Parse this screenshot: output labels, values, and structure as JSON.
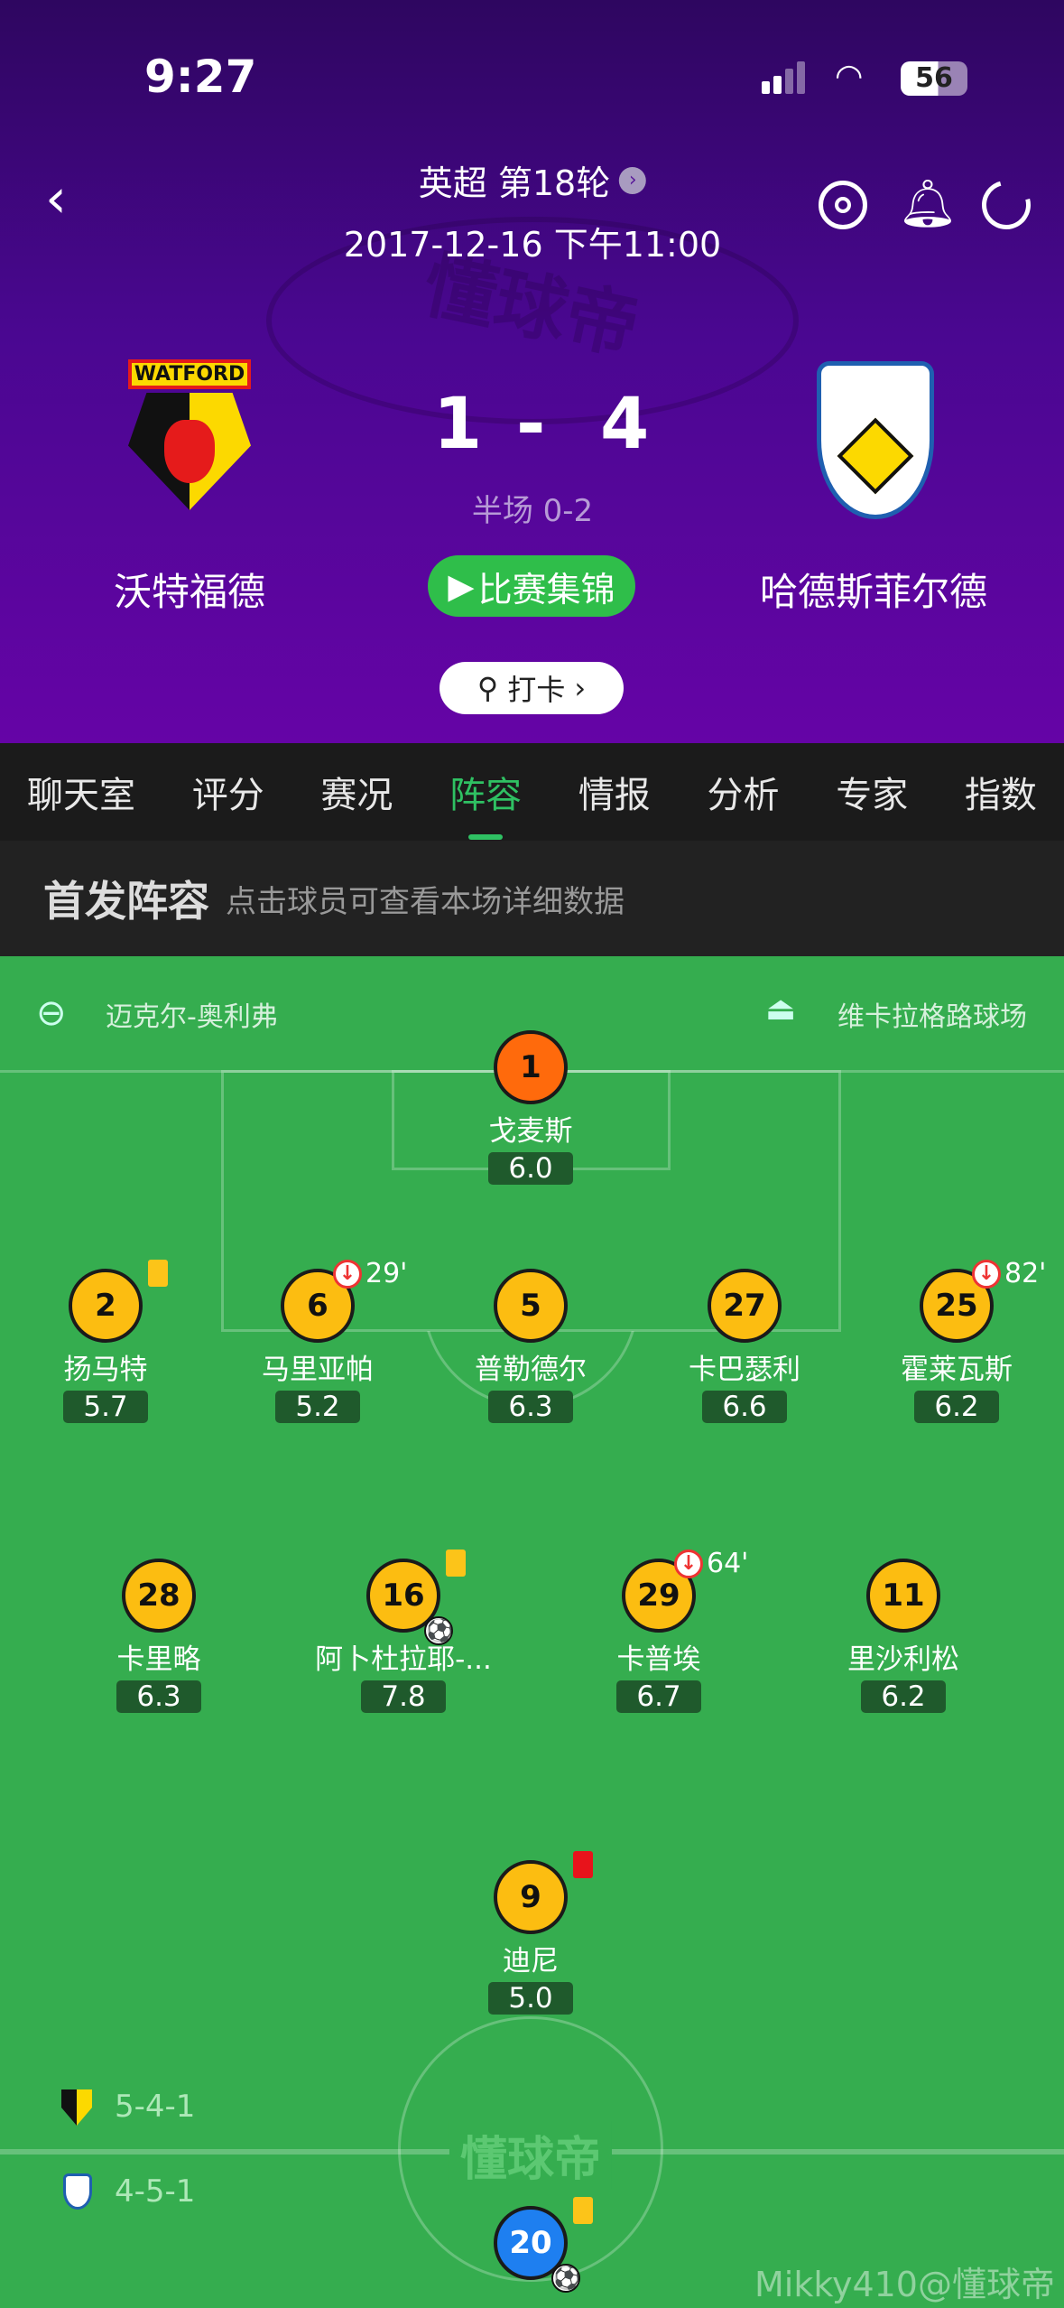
{
  "status": {
    "time": "9:27",
    "battery": "56"
  },
  "header": {
    "league": "英超 第18轮",
    "datetime": "2017-12-16 下午11:00"
  },
  "match": {
    "home": {
      "name": "沃特福德",
      "badge": "WATFORD",
      "score": "1"
    },
    "away": {
      "name": "哈德斯菲尔德",
      "score": "4"
    },
    "separator": "-",
    "halftime": "半场 0-2",
    "highlights_label": "比赛集锦",
    "checkin_label": "打卡"
  },
  "watermark": "懂球帝",
  "tabs": [
    {
      "label": "聊天室"
    },
    {
      "label": "评分"
    },
    {
      "label": "赛况"
    },
    {
      "label": "阵容",
      "active": true
    },
    {
      "label": "情报"
    },
    {
      "label": "分析"
    },
    {
      "label": "专家"
    },
    {
      "label": "指数"
    }
  ],
  "lineup": {
    "title": "首发阵容",
    "hint": "点击球员可查看本场详细数据",
    "referee": "迈克尔-奥利弗",
    "stadium": "维卡拉格路球场",
    "home_formation": "5-4-1",
    "away_formation": "4-5-1"
  },
  "players": [
    {
      "number": "1",
      "name": "戈麦斯",
      "rating": "6.0",
      "color": "#ff6a0c"
    },
    {
      "number": "2",
      "name": "扬马特",
      "rating": "5.7",
      "card": "yellow"
    },
    {
      "number": "6",
      "name": "马里亚帕",
      "rating": "5.2",
      "sub_out": "29'"
    },
    {
      "number": "5",
      "name": "普勒德尔",
      "rating": "6.3"
    },
    {
      "number": "27",
      "name": "卡巴瑟利",
      "rating": "6.6"
    },
    {
      "number": "25",
      "name": "霍莱瓦斯",
      "rating": "6.2",
      "sub_out": "82'"
    },
    {
      "number": "28",
      "name": "卡里略",
      "rating": "6.3"
    },
    {
      "number": "16",
      "name": "阿卜杜拉耶-...",
      "rating": "7.8",
      "card": "yellow",
      "goal": true
    },
    {
      "number": "29",
      "name": "卡普埃",
      "rating": "6.7",
      "sub_out": "64'"
    },
    {
      "number": "11",
      "name": "里沙利松",
      "rating": "6.2"
    },
    {
      "number": "9",
      "name": "迪尼",
      "rating": "5.0",
      "card": "red"
    },
    {
      "number": "20",
      "name": "",
      "rating": "",
      "color": "#1e7ff0",
      "card": "yellow",
      "goal": true
    }
  ],
  "credit": "Mikky410@懂球帝",
  "colors": {
    "accent": "#2fc163",
    "field": "#35ad4f",
    "yellow_card": "#fcc419",
    "red_card": "#e8131b"
  }
}
